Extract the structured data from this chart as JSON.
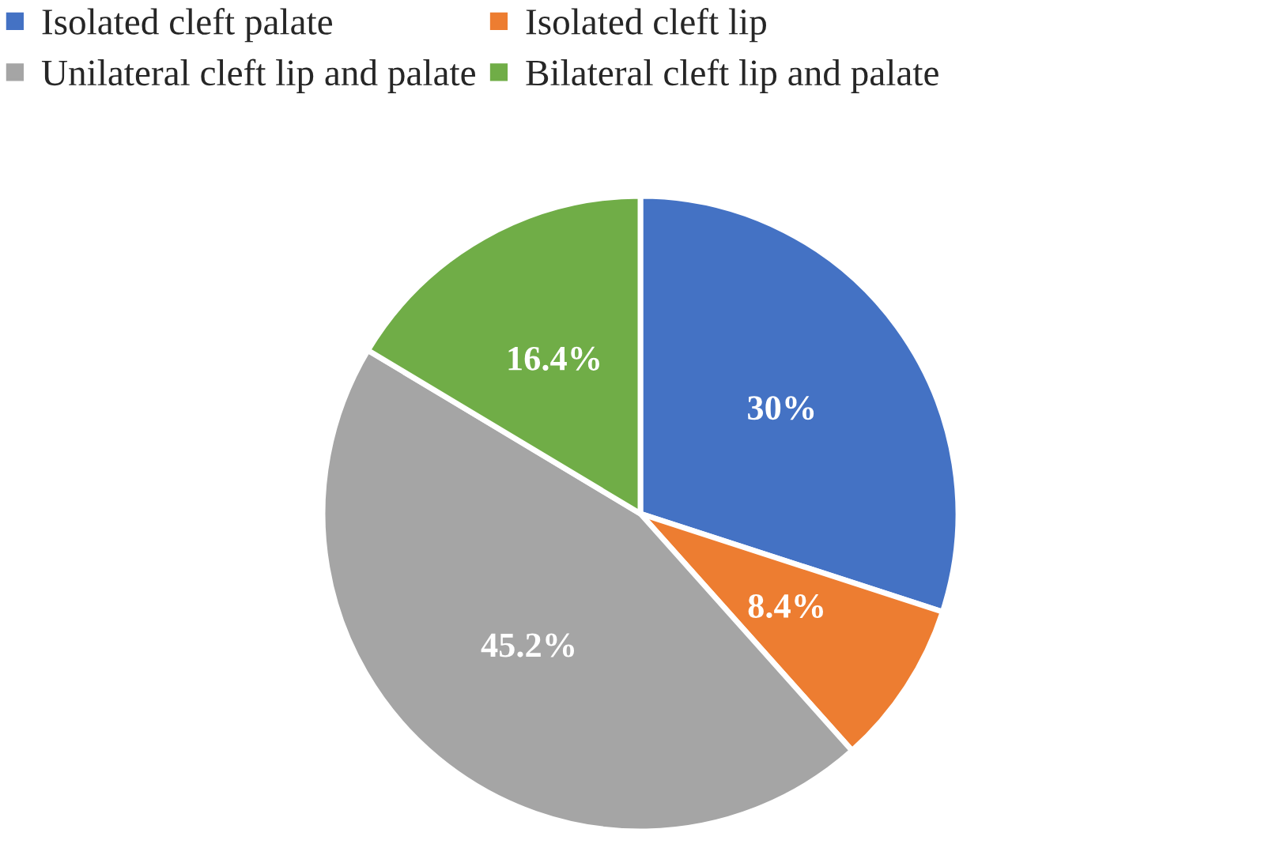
{
  "chart_data": {
    "type": "pie",
    "categories": [
      "Isolated cleft palate",
      "Isolated cleft lip",
      "Unilateral cleft lip and palate",
      "Bilateral cleft lip and palate"
    ],
    "values": [
      30,
      8.4,
      45.2,
      16.4
    ],
    "colors": [
      "#4472c4",
      "#ed7d31",
      "#a5a5a5",
      "#70ad47"
    ],
    "value_labels": [
      "30%",
      "8.4%",
      "45.2%",
      "16.4%"
    ],
    "legend": "top"
  }
}
